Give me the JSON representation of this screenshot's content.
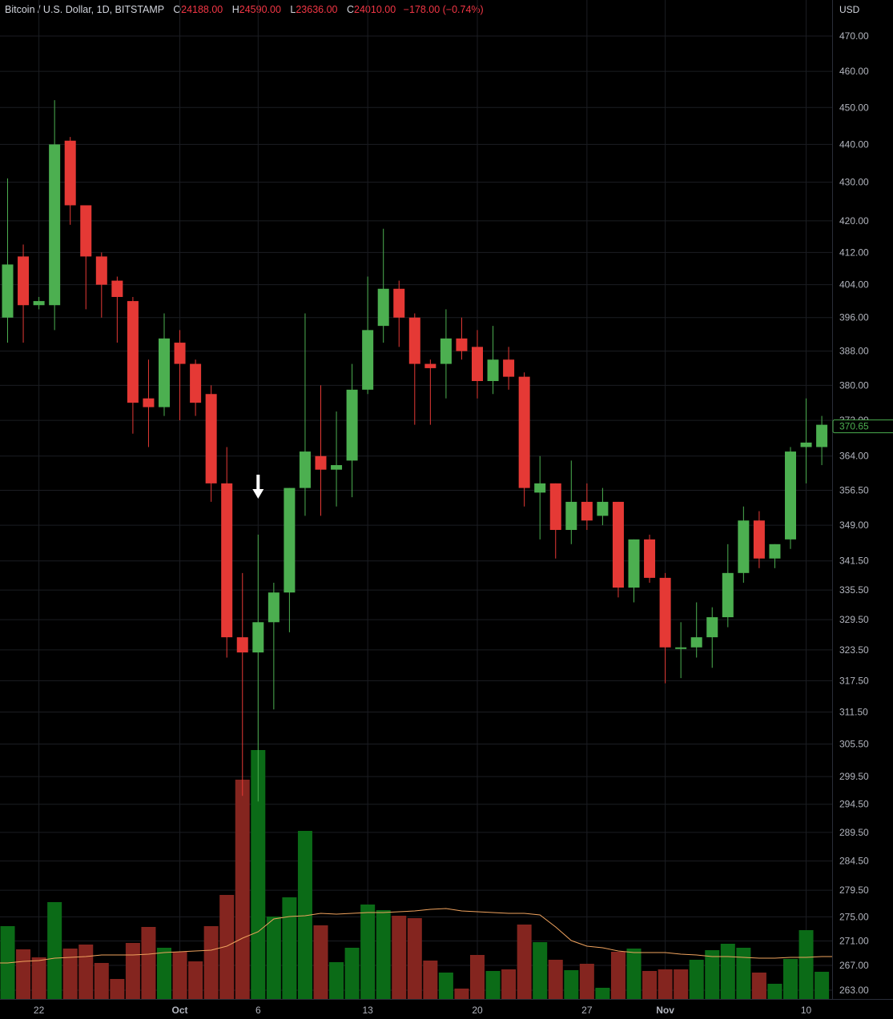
{
  "header": {
    "symbol": "Bitcoin / U.S. Dollar, 1D, BITSTAMP",
    "open_label": "O",
    "open": "24188.00",
    "high_label": "H",
    "high": "24590.00",
    "low_label": "L",
    "low": "23636.00",
    "close_label": "C",
    "close": "24010.00",
    "change": "−178.00 (−0.74%)"
  },
  "axis": {
    "currency": "USD",
    "last_price_label": "370.65"
  },
  "colors": {
    "up": "#4caf50",
    "down": "#e53935",
    "volume_up": "#0b6b17",
    "volume_down": "#84251f",
    "ma_line": "#f0a35e",
    "grid": "#1b1d22",
    "price_tag_border": "#4caf50"
  },
  "chart_data": {
    "type": "candlestick",
    "y_scale": "log",
    "ylim": [
      262,
      478
    ],
    "y_ticks": [
      "470.00",
      "460.00",
      "450.00",
      "440.00",
      "430.00",
      "420.00",
      "412.00",
      "404.00",
      "396.00",
      "388.00",
      "380.00",
      "372.00",
      "364.00",
      "356.50",
      "349.00",
      "341.50",
      "335.50",
      "329.50",
      "323.50",
      "317.50",
      "311.50",
      "305.50",
      "299.50",
      "294.50",
      "289.50",
      "284.50",
      "279.50",
      "275.00",
      "271.00",
      "267.00",
      "263.00"
    ],
    "x_labels": [
      {
        "label": "22",
        "index": 2,
        "bold": false
      },
      {
        "label": "Oct",
        "index": 11,
        "bold": true
      },
      {
        "label": "6",
        "index": 16,
        "bold": false
      },
      {
        "label": "13",
        "index": 23,
        "bold": false
      },
      {
        "label": "20",
        "index": 30,
        "bold": false
      },
      {
        "label": "27",
        "index": 37,
        "bold": false
      },
      {
        "label": "Nov",
        "index": 42,
        "bold": true
      },
      {
        "label": "10",
        "index": 51,
        "bold": false
      }
    ],
    "annotation": {
      "type": "down-arrow",
      "index": 16
    },
    "candles": [
      {
        "o": 396,
        "h": 431,
        "l": 390,
        "c": 409
      },
      {
        "o": 411,
        "h": 414,
        "l": 390,
        "c": 399
      },
      {
        "o": 399,
        "h": 401,
        "l": 398,
        "c": 400
      },
      {
        "o": 399,
        "h": 452,
        "l": 393,
        "c": 440
      },
      {
        "o": 441,
        "h": 442,
        "l": 419,
        "c": 424
      },
      {
        "o": 424,
        "h": 424,
        "l": 398,
        "c": 411
      },
      {
        "o": 411,
        "h": 412,
        "l": 396,
        "c": 404
      },
      {
        "o": 405,
        "h": 406,
        "l": 390,
        "c": 401
      },
      {
        "o": 400,
        "h": 401,
        "l": 369,
        "c": 376
      },
      {
        "o": 377,
        "h": 386,
        "l": 366,
        "c": 375
      },
      {
        "o": 375,
        "h": 397,
        "l": 373,
        "c": 391
      },
      {
        "o": 390,
        "h": 393,
        "l": 372,
        "c": 385
      },
      {
        "o": 385,
        "h": 386,
        "l": 373,
        "c": 376
      },
      {
        "o": 378,
        "h": 380,
        "l": 354,
        "c": 358
      },
      {
        "o": 358,
        "h": 366,
        "l": 322,
        "c": 326
      },
      {
        "o": 326,
        "h": 339,
        "l": 296,
        "c": 323
      },
      {
        "o": 323,
        "h": 347,
        "l": 295,
        "c": 329
      },
      {
        "o": 329,
        "h": 337,
        "l": 312,
        "c": 335
      },
      {
        "o": 335,
        "h": 357,
        "l": 327,
        "c": 357
      },
      {
        "o": 357,
        "h": 397,
        "l": 351,
        "c": 365
      },
      {
        "o": 364,
        "h": 380,
        "l": 351,
        "c": 361
      },
      {
        "o": 361,
        "h": 374,
        "l": 353,
        "c": 362
      },
      {
        "o": 363,
        "h": 385,
        "l": 355,
        "c": 379
      },
      {
        "o": 379,
        "h": 406,
        "l": 378,
        "c": 393
      },
      {
        "o": 394,
        "h": 418,
        "l": 390,
        "c": 403
      },
      {
        "o": 403,
        "h": 405,
        "l": 389,
        "c": 396
      },
      {
        "o": 396,
        "h": 397,
        "l": 371,
        "c": 385
      },
      {
        "o": 385,
        "h": 386,
        "l": 371,
        "c": 384
      },
      {
        "o": 385,
        "h": 398,
        "l": 377,
        "c": 391
      },
      {
        "o": 391,
        "h": 396,
        "l": 386,
        "c": 388
      },
      {
        "o": 389,
        "h": 393,
        "l": 377,
        "c": 381
      },
      {
        "o": 381,
        "h": 394,
        "l": 378,
        "c": 386
      },
      {
        "o": 386,
        "h": 389,
        "l": 379,
        "c": 382
      },
      {
        "o": 382,
        "h": 383,
        "l": 353,
        "c": 357
      },
      {
        "o": 356,
        "h": 364,
        "l": 346,
        "c": 358
      },
      {
        "o": 358,
        "h": 358,
        "l": 342,
        "c": 348
      },
      {
        "o": 348,
        "h": 363,
        "l": 345,
        "c": 354
      },
      {
        "o": 354,
        "h": 358,
        "l": 348,
        "c": 350
      },
      {
        "o": 351,
        "h": 357,
        "l": 349,
        "c": 354
      },
      {
        "o": 354,
        "h": 354,
        "l": 334,
        "c": 336
      },
      {
        "o": 336,
        "h": 346,
        "l": 333,
        "c": 346
      },
      {
        "o": 346,
        "h": 347,
        "l": 337,
        "c": 338
      },
      {
        "o": 338,
        "h": 339,
        "l": 317,
        "c": 324
      },
      {
        "o": 324,
        "h": 329,
        "l": 318,
        "c": 324
      },
      {
        "o": 324,
        "h": 333,
        "l": 322,
        "c": 326
      },
      {
        "o": 326,
        "h": 332,
        "l": 320,
        "c": 330
      },
      {
        "o": 330,
        "h": 345,
        "l": 328,
        "c": 339
      },
      {
        "o": 339,
        "h": 353,
        "l": 337,
        "c": 350
      },
      {
        "o": 350,
        "h": 352,
        "l": 340,
        "c": 342
      },
      {
        "o": 342,
        "h": 345,
        "l": 340,
        "c": 345
      },
      {
        "o": 346,
        "h": 366,
        "l": 344,
        "c": 365
      },
      {
        "o": 366,
        "h": 377,
        "l": 358,
        "c": 367
      },
      {
        "o": 366,
        "h": 373,
        "l": 362,
        "c": 371
      }
    ],
    "volume": {
      "scale_max": 320,
      "values": [
        91,
        62,
        52,
        121,
        63,
        68,
        45,
        25,
        70,
        90,
        64,
        59,
        47,
        91,
        130,
        274,
        311,
        103,
        127,
        210,
        92,
        46,
        64,
        118,
        111,
        104,
        101,
        48,
        33,
        13,
        55,
        35,
        37,
        93,
        71,
        49,
        36,
        44,
        14,
        59,
        63,
        35,
        37,
        37,
        49,
        61,
        69,
        64,
        33,
        19,
        50,
        86,
        34
      ],
      "up": [
        true,
        false,
        false,
        true,
        false,
        false,
        false,
        false,
        false,
        false,
        true,
        false,
        false,
        false,
        false,
        false,
        true,
        true,
        true,
        true,
        false,
        true,
        true,
        true,
        true,
        false,
        false,
        false,
        true,
        false,
        false,
        true,
        false,
        false,
        true,
        false,
        true,
        false,
        true,
        false,
        true,
        false,
        false,
        false,
        true,
        true,
        true,
        true,
        false,
        true,
        true,
        true,
        true
      ],
      "ma": [
        45,
        47,
        48,
        51,
        52,
        53,
        55,
        55,
        55,
        56,
        58,
        59,
        60,
        61,
        66,
        76,
        84,
        100,
        103,
        104,
        107,
        106,
        107,
        108,
        108,
        109,
        110,
        112,
        113,
        110,
        109,
        108,
        107,
        107,
        105,
        90,
        73,
        66,
        64,
        60,
        58,
        58,
        58,
        56,
        55,
        53,
        53,
        52,
        51,
        51,
        52,
        52,
        53
      ]
    }
  }
}
